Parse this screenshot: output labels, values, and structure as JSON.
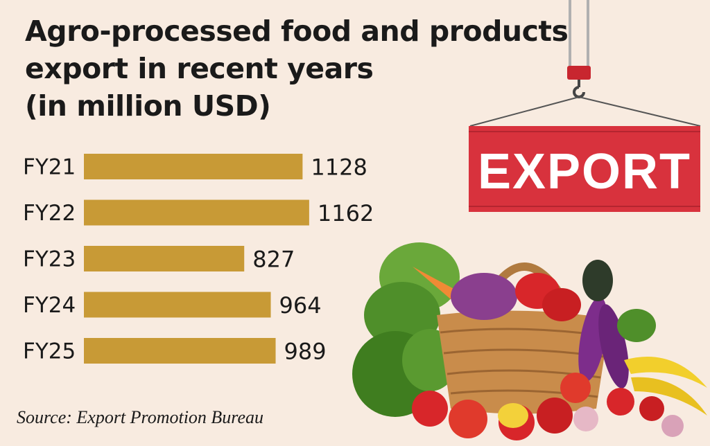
{
  "title": {
    "line1": "Agro-processed food and products",
    "line2": "export in recent years",
    "line3": "(in million USD)"
  },
  "source": "Source: Export Promotion Bureau",
  "illustration": {
    "sign_text": "EXPORT",
    "sign_color": "#d8323d",
    "crane_color": "#c8262f"
  },
  "colors": {
    "bar": "#c89a36",
    "background": "#f8ebe0",
    "text": "#1a1a1a"
  },
  "chart_data": {
    "type": "bar",
    "orientation": "horizontal",
    "title": "Agro-processed food and products export in recent years (in million USD)",
    "categories": [
      "FY21",
      "FY22",
      "FY23",
      "FY24",
      "FY25"
    ],
    "values": [
      1128,
      1162,
      827,
      964,
      989
    ],
    "value_labels": [
      "1128",
      "1162",
      "827",
      "964",
      "989"
    ],
    "xlabel": "",
    "ylabel": "",
    "grid": false,
    "legend": "none"
  }
}
